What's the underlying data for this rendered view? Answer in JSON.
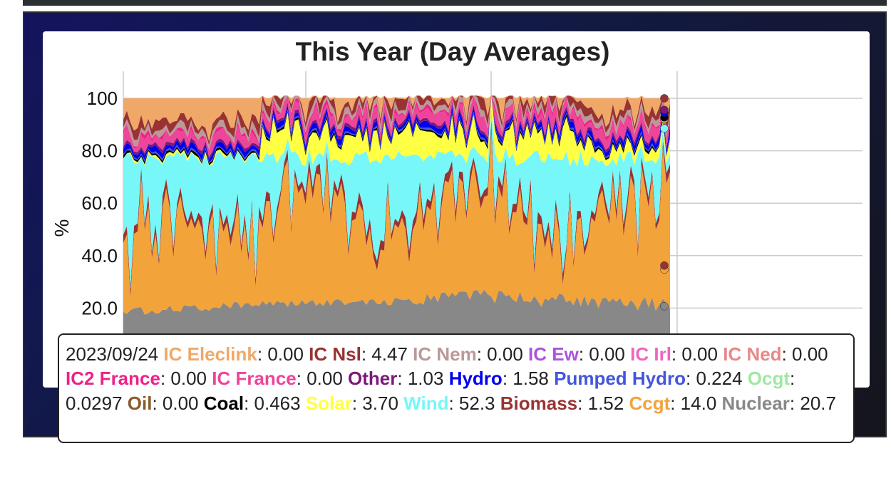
{
  "chart_data": {
    "type": "area",
    "stacked": true,
    "title": "This Year (Day Averages)",
    "xlabel": "",
    "ylabel": "%",
    "ylim": [
      0,
      110
    ],
    "yticks": [
      "20.0",
      "40.0",
      "60.0",
      "80.0",
      "100"
    ],
    "grid": true,
    "highlight_date": "2023/09/24",
    "series": [
      {
        "name": "Nuclear",
        "color": "#888888",
        "value": 20.7
      },
      {
        "name": "Ccgt",
        "color": "#f2a33a",
        "value": 14.0
      },
      {
        "name": "Biomass",
        "color": "#993333",
        "value": 1.52
      },
      {
        "name": "Wind",
        "color": "#77f7f7",
        "value": 52.3
      },
      {
        "name": "Solar",
        "color": "#ffff44",
        "value": 3.7
      },
      {
        "name": "Coal",
        "color": "#000000",
        "value": 0.463
      },
      {
        "name": "Oil",
        "color": "#8b5a2b",
        "value": "0.00"
      },
      {
        "name": "Ocgt",
        "color": "#a0e8a0",
        "value": 0.0297
      },
      {
        "name": "Pumped Hydro",
        "color": "#4455dd",
        "value": 0.224
      },
      {
        "name": "Hydro",
        "color": "#0000ee",
        "value": 1.58
      },
      {
        "name": "Other",
        "color": "#7a1a7a",
        "value": 1.03
      },
      {
        "name": "IC France",
        "color": "#ee4499",
        "value": "0.00"
      },
      {
        "name": "IC2 France",
        "color": "#ee2288",
        "value": "0.00"
      },
      {
        "name": "IC Ned",
        "color": "#e88888",
        "value": "0.00"
      },
      {
        "name": "IC Irl",
        "color": "#ee66bb",
        "value": "0.00"
      },
      {
        "name": "IC Ew",
        "color": "#aa55dd",
        "value": "0.00"
      },
      {
        "name": "IC Nem",
        "color": "#bb9999",
        "value": "0.00"
      },
      {
        "name": "IC Nsl",
        "color": "#993333",
        "value": 4.47
      },
      {
        "name": "IC Eleclink",
        "color": "#f0a868",
        "value": "0.00"
      }
    ]
  },
  "tooltip": {
    "date": "2023/09/24",
    "entries": [
      {
        "name": "IC Eleclink",
        "value": "0.00",
        "color": "#f0a868"
      },
      {
        "name": "IC Nsl",
        "value": "4.47",
        "color": "#993333"
      },
      {
        "name": "IC Nem",
        "value": "0.00",
        "color": "#bb9999"
      },
      {
        "name": "IC Ew",
        "value": "0.00",
        "color": "#aa55dd"
      },
      {
        "name": "IC Irl",
        "value": "0.00",
        "color": "#ee66bb"
      },
      {
        "name": "IC Ned",
        "value": "0.00",
        "color": "#e88888"
      },
      {
        "name": "IC2 France",
        "value": "0.00",
        "color": "#ee2288"
      },
      {
        "name": "IC France",
        "value": "0.00",
        "color": "#ee4499"
      },
      {
        "name": "Other",
        "value": "1.03",
        "color": "#7a1a7a"
      },
      {
        "name": "Hydro",
        "value": "1.58",
        "color": "#0000ee"
      },
      {
        "name": "Pumped Hydro",
        "value": "0.224",
        "color": "#4455dd"
      },
      {
        "name": "Ocgt",
        "value": "0.0297",
        "color": "#a0e8a0"
      },
      {
        "name": "Oil",
        "value": "0.00",
        "color": "#8b5a2b"
      },
      {
        "name": "Coal",
        "value": "0.463",
        "color": "#000000"
      },
      {
        "name": "Solar",
        "value": "3.70",
        "color": "#ffff44"
      },
      {
        "name": "Wind",
        "value": "52.3",
        "color": "#77f7f7"
      },
      {
        "name": "Biomass",
        "value": "1.52",
        "color": "#993333"
      },
      {
        "name": "Ccgt",
        "value": "14.0",
        "color": "#f2a33a"
      },
      {
        "name": "Nuclear",
        "value": "20.7",
        "color": "#888888"
      }
    ]
  }
}
